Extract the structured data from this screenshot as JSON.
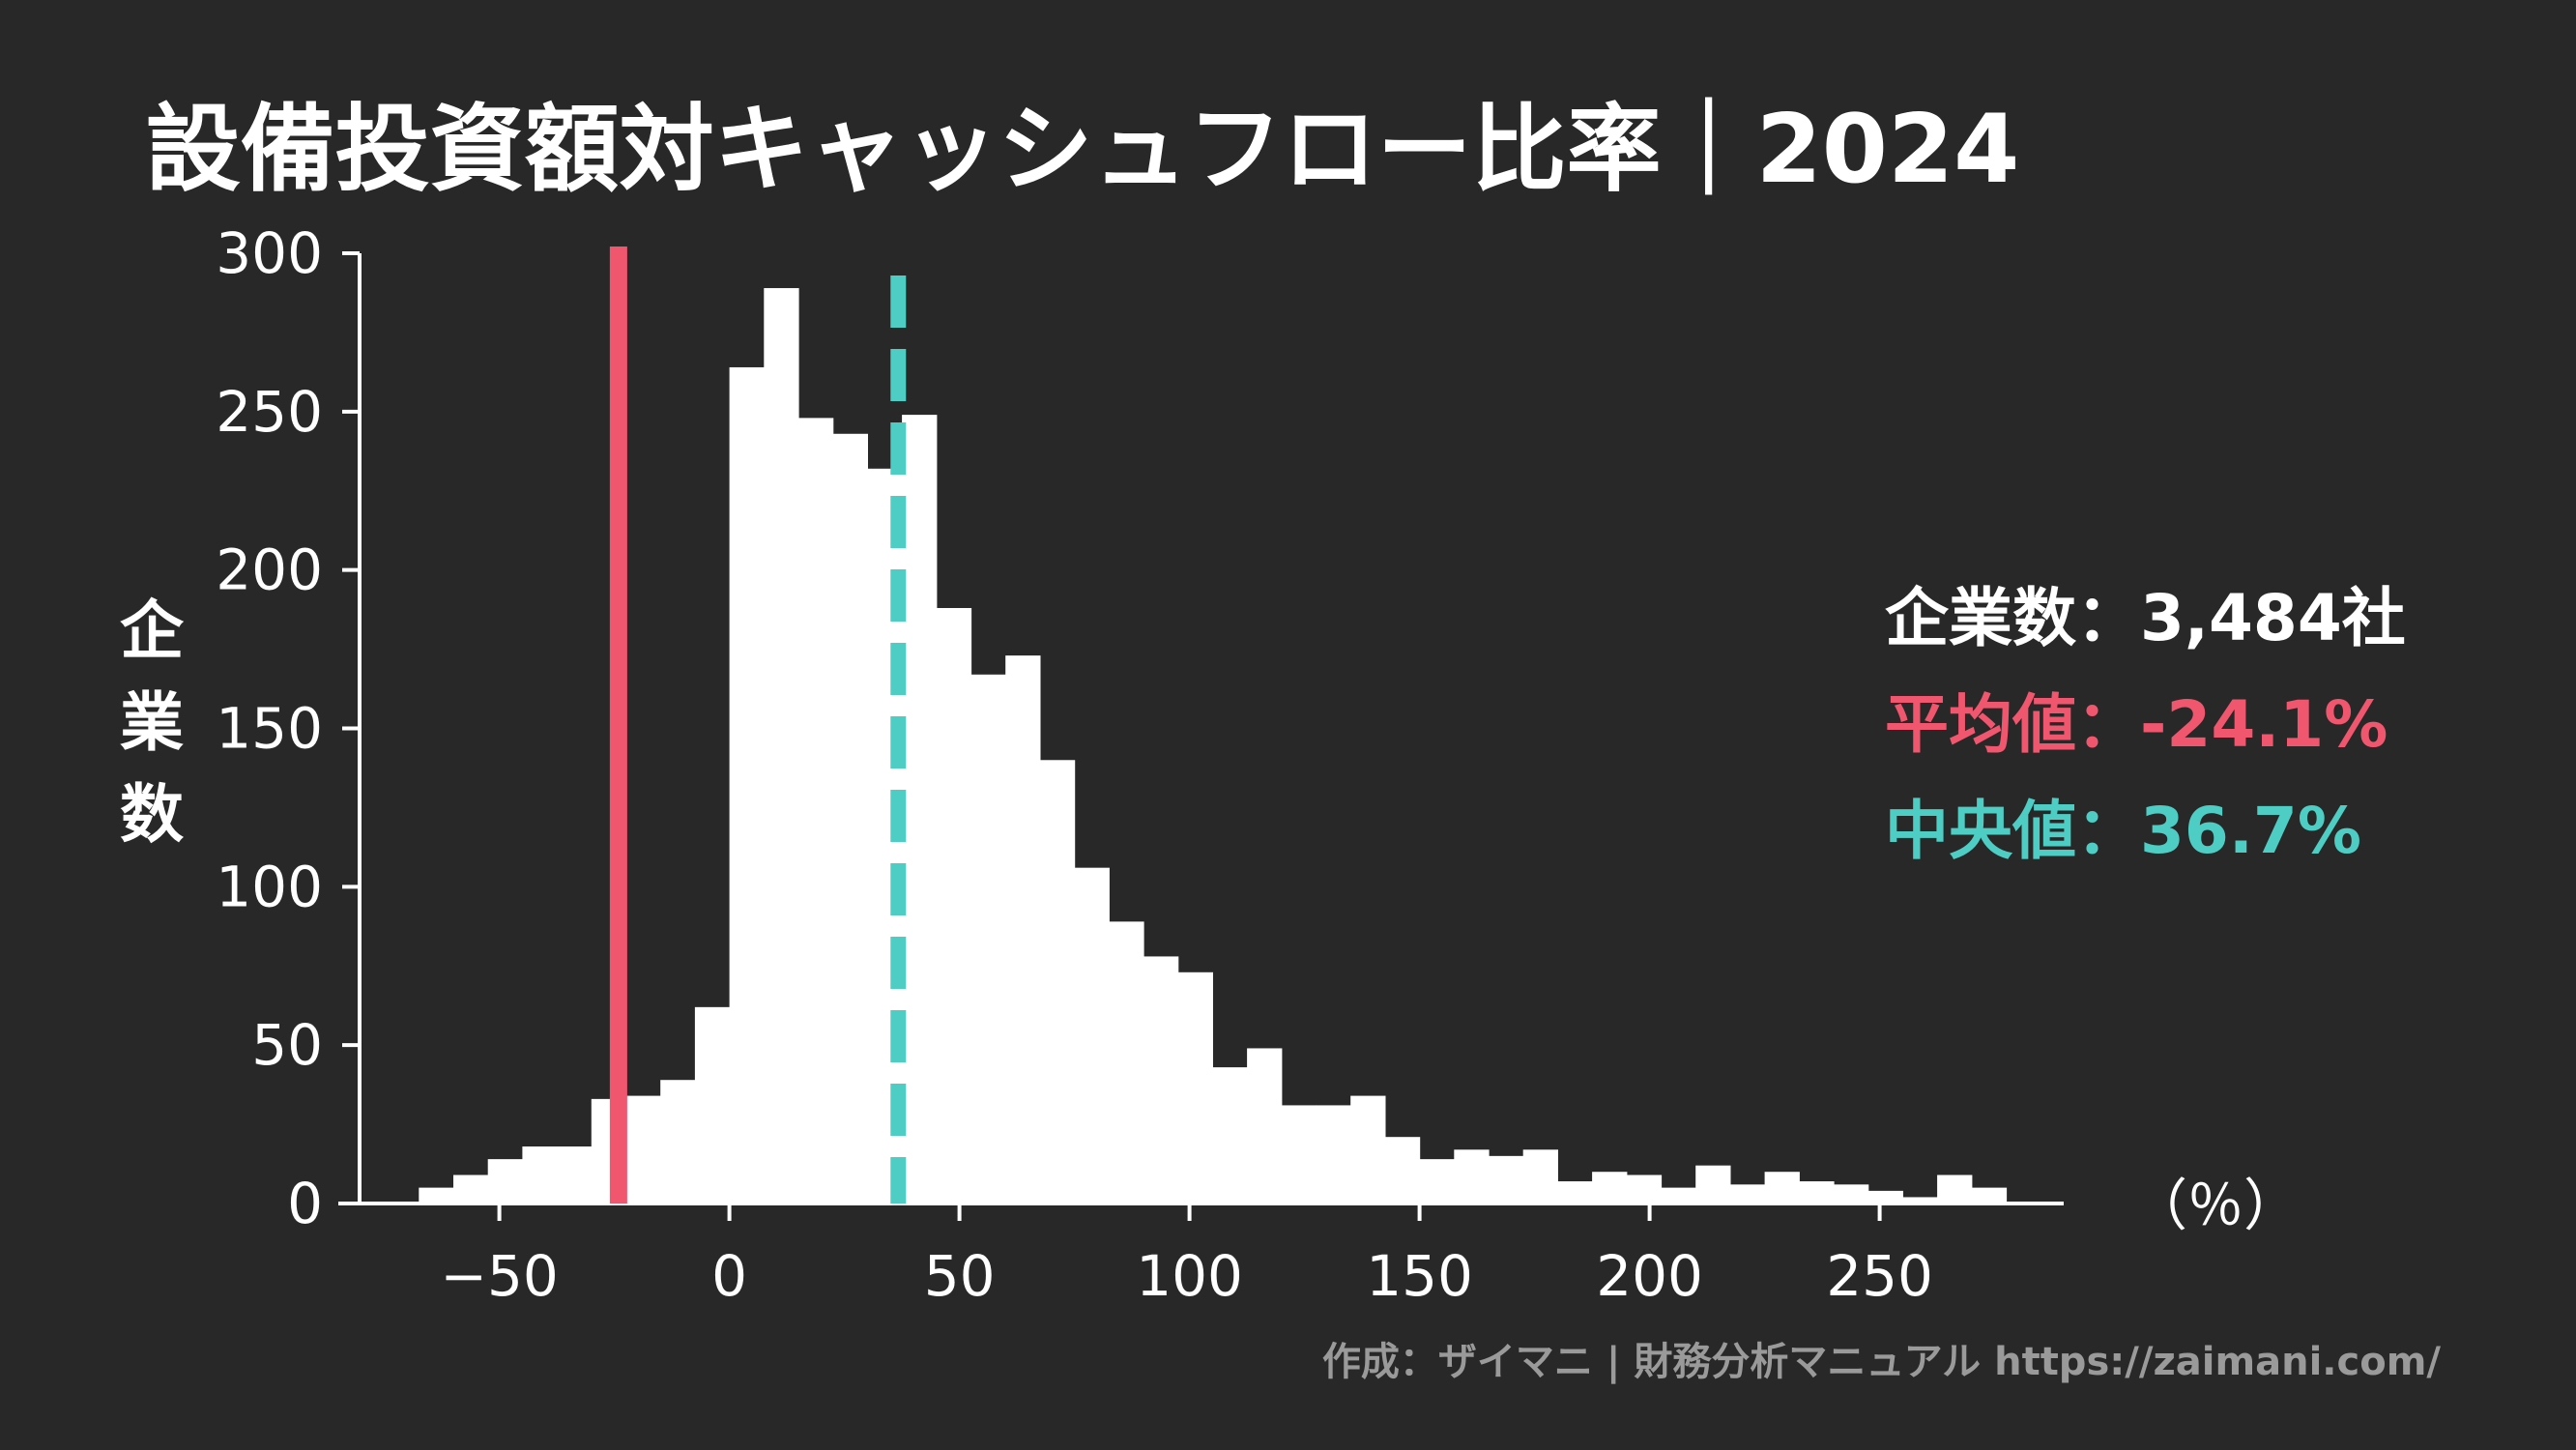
{
  "chart_data": {
    "type": "bar",
    "title": "設備投資額対キャッシュフロー比率｜2024",
    "ylabel": "企業数",
    "xunit": "（％）",
    "bin_width": 7.5,
    "bin_start": -75,
    "values": [
      0,
      5,
      9,
      14,
      18,
      18,
      33,
      34,
      39,
      62,
      264,
      289,
      248,
      243,
      232,
      249,
      188,
      167,
      173,
      140,
      106,
      89,
      78,
      73,
      43,
      49,
      31,
      31,
      34,
      21,
      14,
      17,
      15,
      17,
      7,
      10,
      9,
      5,
      12,
      6,
      10,
      7,
      6,
      4,
      2,
      9,
      5
    ],
    "xlim": [
      -85,
      290
    ],
    "ylim": [
      0,
      300
    ],
    "xticks": [
      -50,
      0,
      50,
      100,
      150,
      200,
      250
    ],
    "xtick_labels": [
      "−50",
      "0",
      "50",
      "100",
      "150",
      "200",
      "250"
    ],
    "yticks": [
      0,
      50,
      100,
      150,
      200,
      250,
      300
    ],
    "ytick_labels": [
      "0",
      "50",
      "100",
      "150",
      "200",
      "250",
      "300"
    ],
    "mean": -24.1,
    "median": 36.7,
    "colors": {
      "background": "#282828",
      "bars": "#ffffff",
      "mean": "#f0566e",
      "median": "#4ecdc4",
      "credit": "#9a9a9a"
    },
    "stats": {
      "count_label": "企業数",
      "count_value": "3,484社",
      "mean_label": "平均値",
      "mean_value": "-24.1%",
      "median_label": "中央値",
      "median_value": "36.7%",
      "separator": "："
    },
    "credit": "作成：ザイマニ | 財務分析マニュアル https://zaimani.com/"
  }
}
